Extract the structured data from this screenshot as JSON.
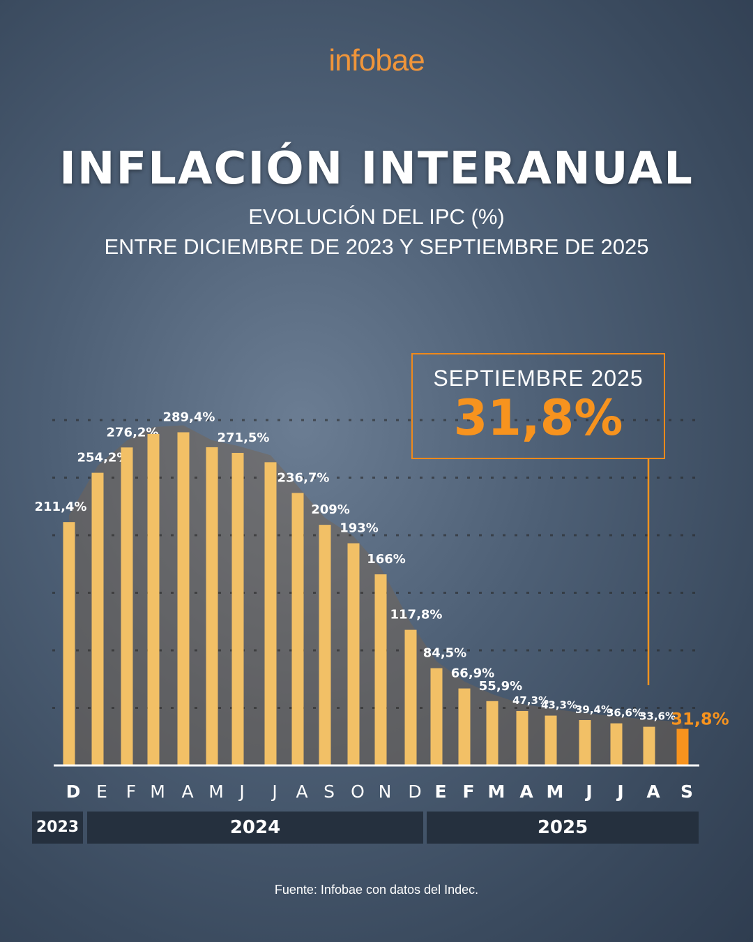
{
  "brand": {
    "logo": "infobae"
  },
  "header": {
    "title": "INFLACIÓN INTERANUAL",
    "subtitle_line1": "EVOLUCIÓN DEL IPC (%)",
    "subtitle_line2": "ENTRE DICIEMBRE DE 2023 Y SEPTIEMBRE DE 2025"
  },
  "callout": {
    "label": "SEPTIEMBRE 2025",
    "value": "31,8%"
  },
  "colors": {
    "bar": "#f2c066",
    "highlight": "#f7931e",
    "background": "#4d5f75",
    "year_band": "#25303e"
  },
  "chart_data": {
    "type": "bar",
    "title": "INFLACIÓN INTERANUAL",
    "xlabel": "",
    "ylabel": "",
    "ylim": [
      0,
      300
    ],
    "grid": true,
    "categories": [
      "D",
      "E",
      "F",
      "M",
      "A",
      "M",
      "J",
      "J",
      "A",
      "S",
      "O",
      "N",
      "D",
      "E",
      "F",
      "M",
      "A",
      "M",
      "J",
      "J",
      "A",
      "S"
    ],
    "years": [
      {
        "label": "2023",
        "span": 1
      },
      {
        "label": "2024",
        "span": 12
      },
      {
        "label": "2025",
        "span": 9
      }
    ],
    "values": [
      211.4,
      254.2,
      276.2,
      287.9,
      289.4,
      276.4,
      271.5,
      263.4,
      236.7,
      209,
      193,
      166,
      117.8,
      84.5,
      66.9,
      55.9,
      47.3,
      43.3,
      39.4,
      36.6,
      33.6,
      31.8
    ],
    "data_labels": [
      "211,4%",
      "254,2%",
      "276,2%",
      null,
      "289,4%",
      null,
      "271,5%",
      null,
      "236,7%",
      "209%",
      "193%",
      "166%",
      "117,8%",
      "84,5%",
      "66,9%",
      "55,9%",
      "47,3%",
      "43,3%",
      "39,4%",
      "36,6%",
      "33,6%",
      "31,8%"
    ],
    "highlight_index": 21
  },
  "footer": {
    "source": "Fuente: Infobae con datos del Indec."
  }
}
